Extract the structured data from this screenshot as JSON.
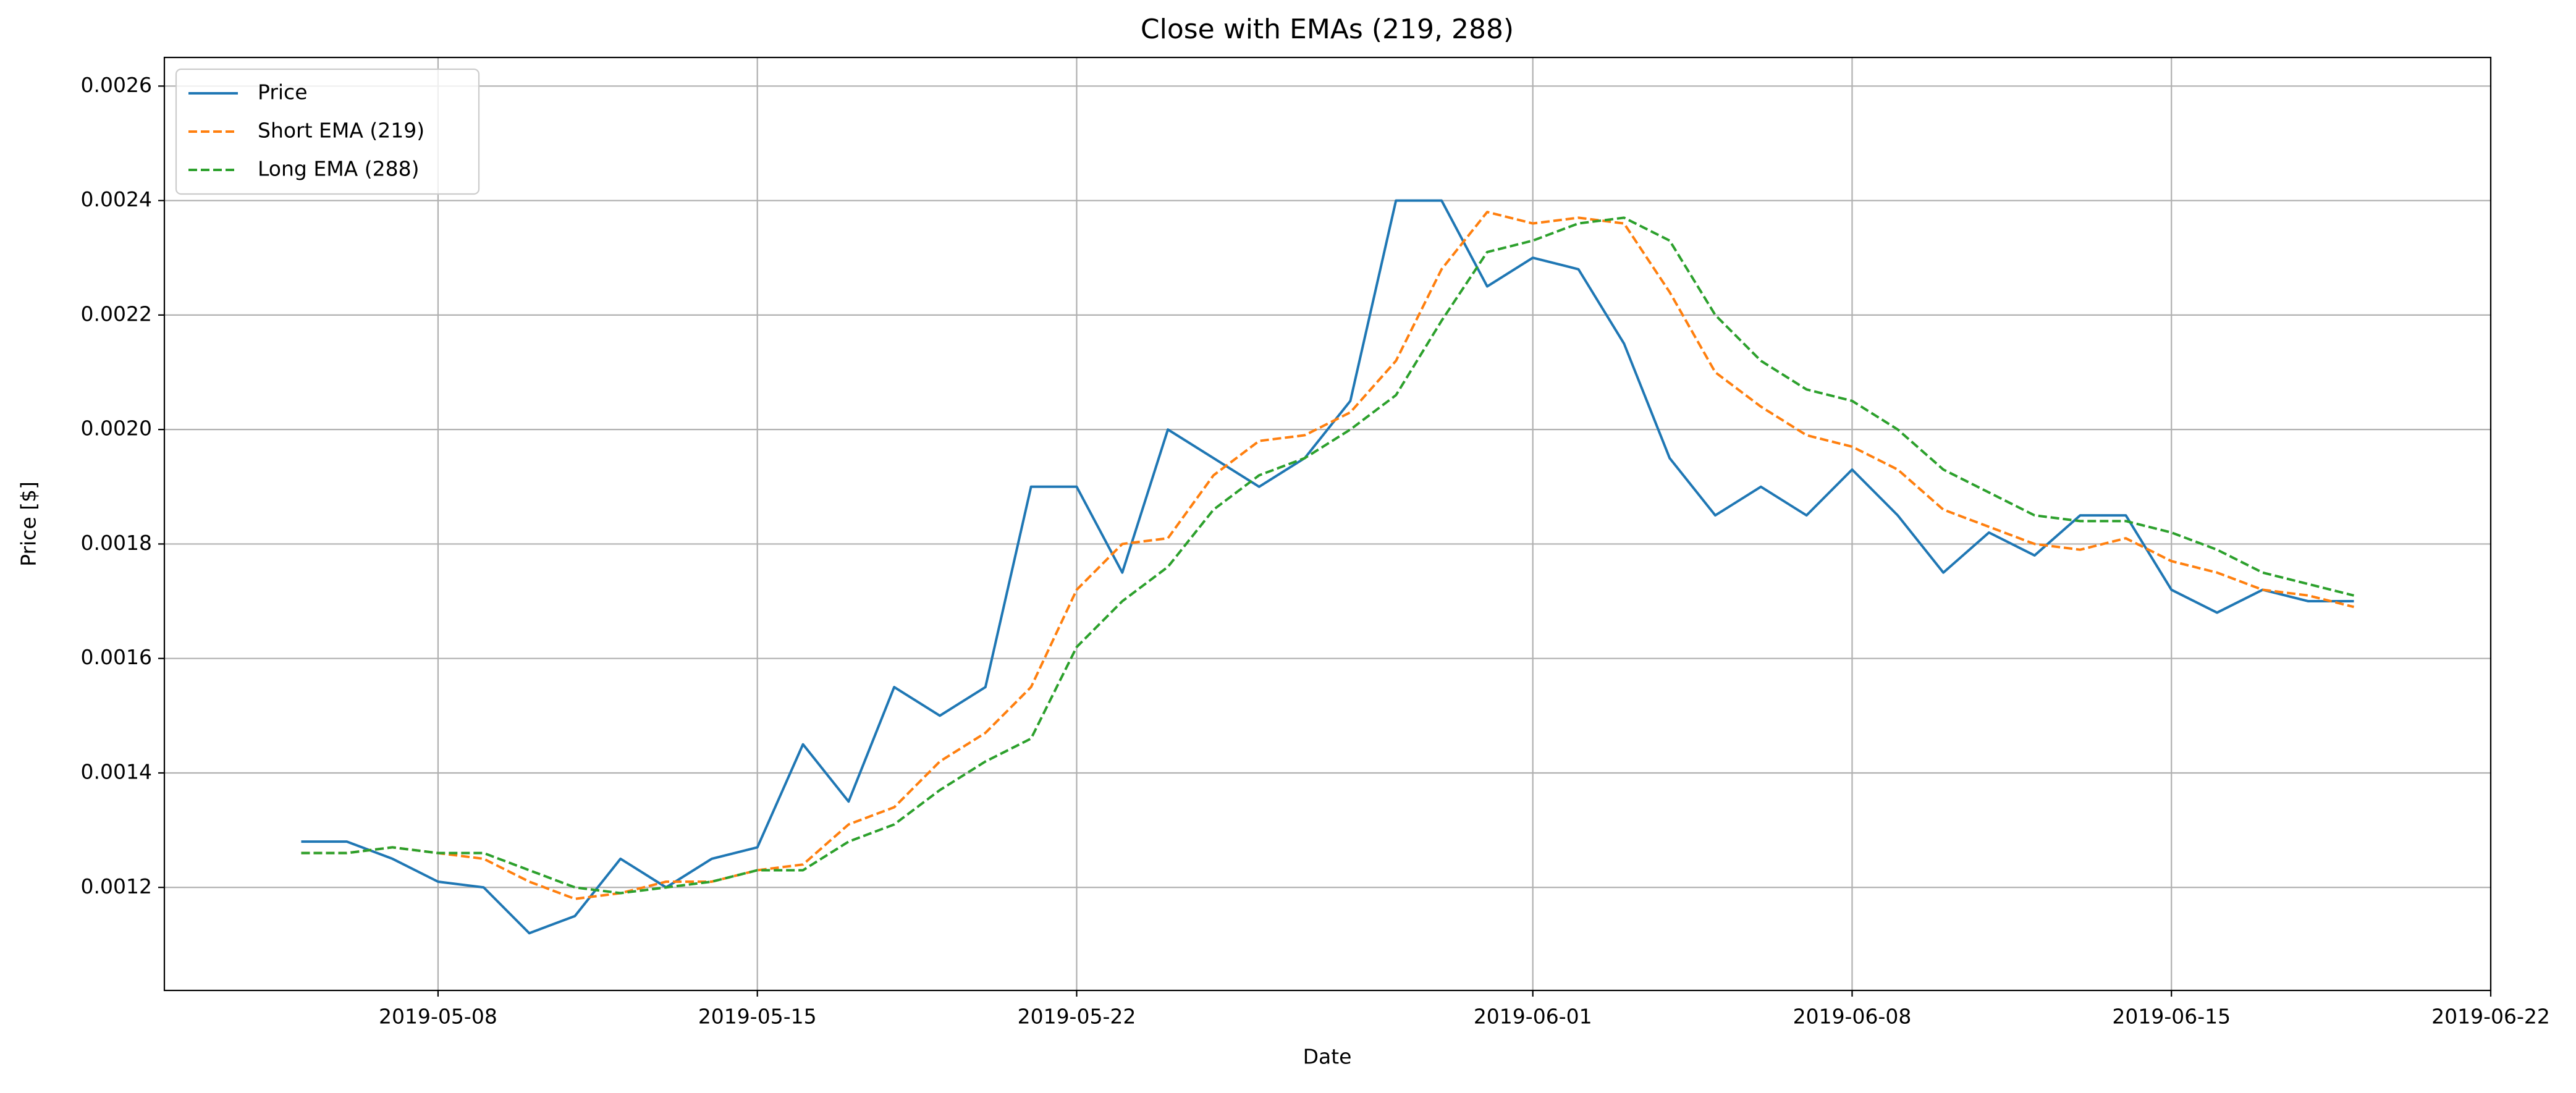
{
  "chart_data": {
    "type": "line",
    "title": "Close with EMAs (219, 288)",
    "x_label": "Date",
    "y_label": "Price [$]",
    "x": [
      "2019-05-05",
      "2019-05-06",
      "2019-05-07",
      "2019-05-08",
      "2019-05-09",
      "2019-05-10",
      "2019-05-11",
      "2019-05-12",
      "2019-05-13",
      "2019-05-14",
      "2019-05-15",
      "2019-05-16",
      "2019-05-17",
      "2019-05-18",
      "2019-05-19",
      "2019-05-20",
      "2019-05-21",
      "2019-05-22",
      "2019-05-23",
      "2019-05-24",
      "2019-05-25",
      "2019-05-26",
      "2019-05-27",
      "2019-05-28",
      "2019-05-29",
      "2019-05-30",
      "2019-05-31",
      "2019-06-01",
      "2019-06-02",
      "2019-06-03",
      "2019-06-04",
      "2019-06-05",
      "2019-06-06",
      "2019-06-07",
      "2019-06-08",
      "2019-06-09",
      "2019-06-10",
      "2019-06-11",
      "2019-06-12",
      "2019-06-13",
      "2019-06-14",
      "2019-06-15",
      "2019-06-16",
      "2019-06-17",
      "2019-06-18",
      "2019-06-19"
    ],
    "series": [
      {
        "name": "Price",
        "color": "#1f77b4",
        "linestyle": "solid",
        "values": [
          0.00128,
          0.00128,
          0.00125,
          0.00121,
          0.0012,
          0.00112,
          0.00115,
          0.00125,
          0.0012,
          0.00125,
          0.00127,
          0.00145,
          0.00135,
          0.00155,
          0.0015,
          0.00155,
          0.0019,
          0.0019,
          0.00175,
          0.002,
          0.00195,
          0.0019,
          0.00195,
          0.00205,
          0.0024,
          0.0024,
          0.00225,
          0.0023,
          0.00228,
          0.00215,
          0.00195,
          0.00185,
          0.0019,
          0.00185,
          0.00193,
          0.00185,
          0.00175,
          0.00182,
          0.00178,
          0.00185,
          0.00185,
          0.00172,
          0.00168,
          0.00172,
          0.0017,
          0.0017
        ]
      },
      {
        "name": "Short EMA (219)",
        "color": "#ff7f0e",
        "linestyle": "dashed",
        "values": [
          0.00126,
          0.00126,
          0.00127,
          0.00126,
          0.00125,
          0.00121,
          0.00118,
          0.00119,
          0.00121,
          0.00121,
          0.00123,
          0.00124,
          0.00131,
          0.00134,
          0.00142,
          0.00147,
          0.00155,
          0.00172,
          0.0018,
          0.00181,
          0.00192,
          0.00198,
          0.00199,
          0.00203,
          0.00212,
          0.00228,
          0.00238,
          0.00236,
          0.00237,
          0.00236,
          0.00224,
          0.0021,
          0.00204,
          0.00199,
          0.00197,
          0.00193,
          0.00186,
          0.00183,
          0.0018,
          0.00179,
          0.00181,
          0.00177,
          0.00175,
          0.00172,
          0.00171,
          0.00169
        ]
      },
      {
        "name": "Long EMA (288)",
        "color": "#2ca02c",
        "linestyle": "dashed",
        "values": [
          0.00126,
          0.00126,
          0.00127,
          0.00126,
          0.00126,
          0.00123,
          0.0012,
          0.00119,
          0.0012,
          0.00121,
          0.00123,
          0.00123,
          0.00128,
          0.00131,
          0.00137,
          0.00142,
          0.00146,
          0.00162,
          0.0017,
          0.00176,
          0.00186,
          0.00192,
          0.00195,
          0.002,
          0.00206,
          0.00219,
          0.00231,
          0.00233,
          0.00236,
          0.00237,
          0.00233,
          0.0022,
          0.00212,
          0.00207,
          0.00205,
          0.002,
          0.00193,
          0.00189,
          0.00185,
          0.00184,
          0.00184,
          0.00182,
          0.00179,
          0.00175,
          0.00173,
          0.00171
        ]
      }
    ],
    "xlim": [
      "2019-05-02",
      "2019-06-22"
    ],
    "xticks": [
      "2019-05-08",
      "2019-05-15",
      "2019-05-22",
      "2019-06-01",
      "2019-06-08",
      "2019-06-15",
      "2019-06-22"
    ],
    "ylim": [
      0.00102,
      0.00265
    ],
    "yticks": [
      0.0012,
      0.0014,
      0.0016,
      0.0018,
      {
        "value": 0.002,
        "label": "0.0020"
      },
      0.0022,
      0.0024,
      0.0026
    ],
    "grid": true,
    "legend": "upper left"
  }
}
